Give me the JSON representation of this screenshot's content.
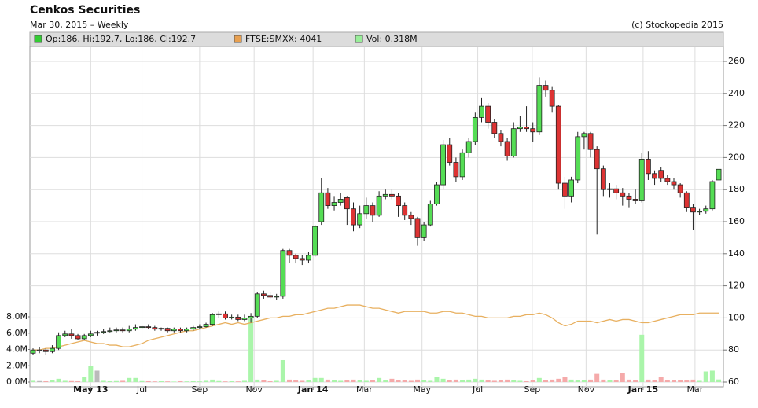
{
  "chart_data": {
    "type": "candlestick",
    "title": "Cenkos Securities",
    "subtitle": "Mar 30, 2015 – Weekly",
    "credit": "(c) Stockopedia 2015",
    "legend": [
      {
        "name": "Op:186, Hi:192.7, Lo:186, Cl:192.7",
        "color": "#33cc33"
      },
      {
        "name": "FTSE:SMXX: 4041",
        "color": "#e8a050"
      },
      {
        "name": "Vol: 0.318M",
        "color": "#99ee99"
      }
    ],
    "up_color": "#55dd55",
    "down_color": "#dd3333",
    "flat_color": "#bbbbbb",
    "vol_up_color": "#aaf5aa",
    "vol_down_color": "#f5aaaa",
    "ftse_color": "#e8b060",
    "ylim": [
      57.06,
      268.82
    ],
    "yticks": [
      60,
      80,
      100,
      120,
      140,
      160,
      180,
      200,
      220,
      240,
      260
    ],
    "vol_lim": [
      0,
      8000000
    ],
    "vol_ticks": [
      {
        "value": 0,
        "label": "0.0M"
      },
      {
        "value": 2000000,
        "label": "2.0M"
      },
      {
        "value": 4000000,
        "label": "4.0M"
      },
      {
        "value": 6000000,
        "label": "6.0M"
      },
      {
        "value": 8000000,
        "label": "8.0M"
      }
    ],
    "xticks": [
      {
        "value": 9,
        "label": "May 13"
      },
      {
        "value": 17,
        "label": "Jul"
      },
      {
        "value": 26,
        "label": "Sep"
      },
      {
        "value": 34.5,
        "label": "Nov"
      },
      {
        "value": 43.7,
        "label": "Jan 14"
      },
      {
        "value": 51.7,
        "label": "Mar"
      },
      {
        "value": 60.7,
        "label": "May"
      },
      {
        "value": 69.4,
        "label": "Jul"
      },
      {
        "value": 77.9,
        "label": "Sep"
      },
      {
        "value": 86.3,
        "label": "Nov"
      },
      {
        "value": 95.2,
        "label": "Jan 15"
      },
      {
        "value": 103.3,
        "label": "Mar"
      }
    ],
    "grid": true,
    "candles": [
      [
        78,
        81,
        77,
        80
      ],
      [
        80,
        82,
        78,
        80
      ],
      [
        80,
        81,
        77,
        79
      ],
      [
        79,
        83,
        78,
        81
      ],
      [
        81,
        91,
        80,
        89
      ],
      [
        89,
        92,
        88,
        90
      ],
      [
        90,
        93,
        87,
        89
      ],
      [
        89,
        90,
        86,
        87
      ],
      [
        87,
        90,
        86,
        89
      ],
      [
        89,
        92,
        88,
        90
      ],
      [
        91,
        92,
        89,
        91
      ],
      [
        91,
        93,
        90,
        91.5
      ],
      [
        91.5,
        94,
        91,
        92
      ],
      [
        92,
        94,
        91,
        92.5
      ],
      [
        92.5,
        94,
        91,
        92
      ],
      [
        92,
        95,
        91,
        93
      ],
      [
        93,
        96,
        92,
        94
      ],
      [
        94,
        95,
        93,
        94.5
      ],
      [
        94.5,
        96,
        93,
        94
      ],
      [
        94,
        95,
        92,
        93
      ],
      [
        93,
        94,
        92,
        93.5
      ],
      [
        93.5,
        94,
        91,
        92
      ],
      [
        92,
        94,
        91,
        93
      ],
      [
        93,
        94,
        91,
        92
      ],
      [
        92,
        94,
        91,
        93
      ],
      [
        93,
        95,
        92,
        94
      ],
      [
        94,
        96,
        93,
        94.5
      ],
      [
        94.5,
        97,
        94,
        96
      ],
      [
        96,
        103,
        95,
        102
      ],
      [
        102,
        104,
        100,
        102.5
      ],
      [
        102.5,
        104,
        99,
        100
      ],
      [
        100,
        102,
        99,
        100.5
      ],
      [
        100.5,
        102,
        98,
        99
      ],
      [
        99,
        102,
        98,
        100
      ],
      [
        100,
        103,
        97,
        101
      ],
      [
        101,
        116,
        100,
        115
      ],
      [
        115,
        117,
        112,
        114
      ],
      [
        114,
        116,
        112,
        113
      ],
      [
        113,
        115,
        111,
        113.5
      ],
      [
        113.5,
        143,
        112,
        142
      ],
      [
        142,
        143,
        134,
        139
      ],
      [
        139,
        140,
        134,
        137
      ],
      [
        137,
        139,
        133,
        136
      ],
      [
        136,
        141,
        134,
        139
      ],
      [
        139,
        158,
        138,
        157
      ],
      [
        160,
        187,
        158,
        178
      ],
      [
        178,
        181,
        168,
        170
      ],
      [
        170,
        176,
        167,
        172
      ],
      [
        172,
        178,
        170,
        174
      ],
      [
        175,
        176,
        158,
        168
      ],
      [
        168,
        172,
        154,
        158
      ],
      [
        158,
        170,
        156,
        165
      ],
      [
        165,
        175,
        162,
        170
      ],
      [
        170,
        172,
        160,
        164
      ],
      [
        164,
        179,
        163,
        176
      ],
      [
        176,
        180,
        174,
        177
      ],
      [
        177,
        180,
        174,
        176
      ],
      [
        176,
        178,
        163,
        170
      ],
      [
        170,
        172,
        161,
        164
      ],
      [
        164,
        166,
        158,
        162
      ],
      [
        162,
        163,
        145,
        150
      ],
      [
        150,
        160,
        148,
        158
      ],
      [
        158,
        173,
        157,
        171
      ],
      [
        171,
        185,
        170,
        183
      ],
      [
        183,
        211,
        180,
        208
      ],
      [
        208,
        212,
        195,
        197
      ],
      [
        197,
        200,
        185,
        188
      ],
      [
        188,
        205,
        186,
        203
      ],
      [
        203,
        212,
        200,
        210
      ],
      [
        210,
        228,
        208,
        225
      ],
      [
        225,
        237,
        222,
        232
      ],
      [
        232,
        234,
        218,
        222
      ],
      [
        222,
        224,
        212,
        215
      ],
      [
        215,
        217,
        207,
        210
      ],
      [
        210,
        212,
        198,
        201
      ],
      [
        201,
        222,
        200,
        218
      ],
      [
        218,
        226,
        216,
        219
      ],
      [
        219,
        232,
        216,
        218
      ],
      [
        218,
        222,
        210,
        216
      ],
      [
        216,
        250,
        214,
        245
      ],
      [
        245,
        248,
        238,
        242
      ],
      [
        242,
        244,
        228,
        232
      ],
      [
        232,
        233,
        180,
        184
      ],
      [
        184,
        188,
        168,
        176
      ],
      [
        176,
        188,
        172,
        186
      ],
      [
        186,
        216,
        184,
        213
      ],
      [
        213,
        216,
        205,
        215
      ],
      [
        215,
        216,
        200,
        205
      ],
      [
        205,
        207,
        152,
        193
      ],
      [
        193,
        195,
        176,
        180
      ],
      [
        180,
        184,
        175,
        180.5
      ],
      [
        180.5,
        183,
        174,
        178
      ],
      [
        178,
        181,
        170,
        176
      ],
      [
        176,
        178,
        169,
        174
      ],
      [
        174,
        180,
        171,
        173
      ],
      [
        173,
        203,
        172,
        199
      ],
      [
        199,
        204,
        186,
        190
      ],
      [
        190,
        192,
        183,
        187
      ],
      [
        192,
        194,
        185,
        187
      ],
      [
        187,
        189,
        183,
        185
      ],
      [
        185,
        187,
        180,
        183
      ],
      [
        183,
        184,
        175,
        178
      ],
      [
        178,
        179,
        166,
        169
      ],
      [
        169,
        171,
        155,
        166
      ],
      [
        166,
        168,
        164,
        166.5
      ],
      [
        166.5,
        170,
        165,
        168
      ],
      [
        168,
        186,
        167,
        185
      ],
      [
        186,
        192.7,
        186,
        192.7
      ]
    ],
    "volume": [
      150000,
      120000,
      100000,
      200000,
      400000,
      150000,
      120000,
      100000,
      600000,
      2000000,
      1400000,
      150000,
      100000,
      120000,
      150000,
      500000,
      500000,
      120000,
      100000,
      80000,
      100000,
      80000,
      60000,
      100000,
      80000,
      100000,
      80000,
      150000,
      300000,
      120000,
      80000,
      100000,
      80000,
      150000,
      7800000,
      300000,
      200000,
      100000,
      150000,
      2700000,
      300000,
      200000,
      150000,
      200000,
      500000,
      500000,
      300000,
      200000,
      150000,
      200000,
      300000,
      200000,
      150000,
      200000,
      500000,
      200000,
      400000,
      200000,
      200000,
      150000,
      300000,
      200000,
      150000,
      600000,
      400000,
      250000,
      300000,
      200000,
      300000,
      400000,
      300000,
      200000,
      150000,
      200000,
      300000,
      200000,
      150000,
      100000,
      200000,
      500000,
      250000,
      300000,
      400000,
      600000,
      300000,
      200000,
      200000,
      300000,
      1000000,
      300000,
      200000,
      250000,
      1100000,
      300000,
      200000,
      5800000,
      300000,
      250000,
      600000,
      200000,
      200000,
      250000,
      200000,
      300000,
      150000,
      1300000,
      1400000,
      318000
    ],
    "ftse": [
      80,
      80,
      81,
      81,
      82,
      83,
      84,
      85,
      86,
      85,
      84,
      84,
      83,
      83,
      82,
      82,
      83,
      84,
      86,
      87,
      88,
      89,
      90,
      91,
      92,
      92,
      93,
      94,
      95,
      96,
      97,
      96,
      97,
      96,
      97,
      98,
      99,
      100,
      100,
      101,
      101,
      102,
      102,
      103,
      104,
      105,
      106,
      106,
      107,
      108,
      108,
      108,
      107,
      106,
      106,
      105,
      104,
      103,
      104,
      104,
      104,
      104,
      103,
      103,
      104,
      104,
      103,
      103,
      102,
      101,
      101,
      100,
      100,
      100,
      100,
      101,
      101,
      102,
      102,
      103,
      102,
      100,
      97,
      95,
      96,
      98,
      98,
      98,
      97,
      98,
      99,
      98,
      99,
      99,
      98,
      97,
      97,
      98,
      99,
      100,
      101,
      102,
      102,
      102,
      103,
      103,
      103,
      103
    ]
  }
}
